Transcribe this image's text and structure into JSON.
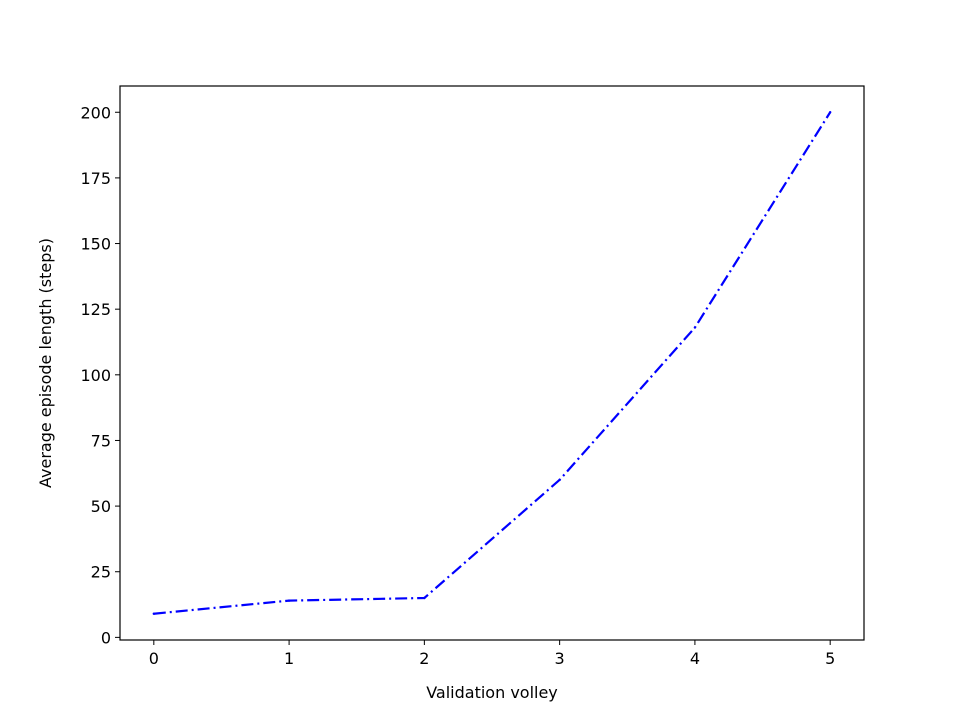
{
  "chart_data": {
    "type": "line",
    "title": "",
    "xlabel": "Validation volley",
    "ylabel": "Average episode length (steps)",
    "x": [
      0,
      1,
      2,
      3,
      4,
      5
    ],
    "series": [
      {
        "values": [
          9,
          14,
          15,
          60,
          118,
          200
        ],
        "color": "#0000ff",
        "line_style": "dash-dot"
      }
    ],
    "xlim": [
      -0.25,
      5.25
    ],
    "ylim": [
      -1,
      210
    ],
    "xticks": [
      0,
      1,
      2,
      3,
      4,
      5
    ],
    "xtick_labels": [
      "0",
      "1",
      "2",
      "3",
      "4",
      "5"
    ],
    "yticks": [
      0,
      25,
      50,
      75,
      100,
      125,
      150,
      175,
      200
    ],
    "ytick_labels": [
      "0",
      "25",
      "50",
      "75",
      "100",
      "125",
      "150",
      "175",
      "200"
    ],
    "grid": false,
    "legend": "none"
  }
}
